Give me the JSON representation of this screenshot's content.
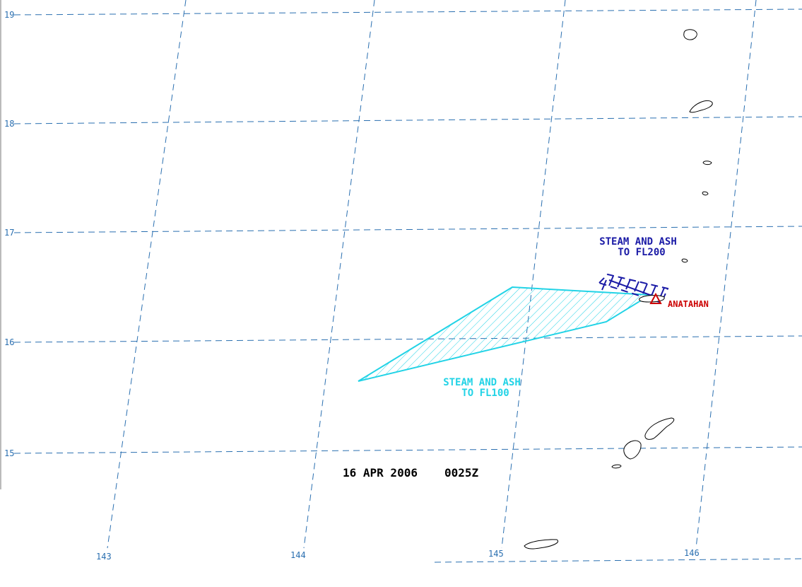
{
  "map": {
    "date_label": "16 APR 2006",
    "time_label": "0025Z",
    "latitudes": [
      "19",
      "18",
      "17",
      "16",
      "15"
    ],
    "longitudes": [
      "143",
      "144",
      "145",
      "146"
    ],
    "volcano": {
      "name": "ANATAHAN",
      "symbol": "triangle",
      "color": "#cc0000"
    },
    "plumes": [
      {
        "line1": "STEAM AND ASH",
        "line2": "TO FL200",
        "color": "#1a1aa6"
      },
      {
        "line1": "STEAM AND ASH",
        "line2": "TO FL100",
        "color": "#22d3e6"
      }
    ],
    "grid_color": "#2a6fb0"
  }
}
